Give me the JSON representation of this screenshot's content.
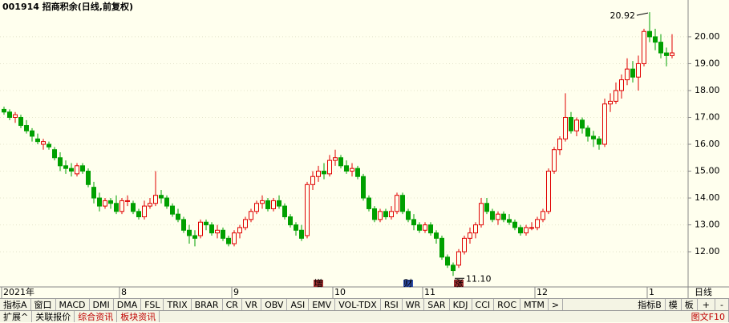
{
  "chart_data": {
    "type": "candlestick",
    "title": "001914 招商积余(日线,前复权)",
    "period": "日线",
    "up_color": "#e00000",
    "down_color": "#00a000",
    "ylim": [
      10.69,
      21.37
    ],
    "yticks": [
      {
        "value": 12,
        "label": "12.00"
      },
      {
        "value": 13,
        "label": "13.00"
      },
      {
        "value": 14,
        "label": "14.00"
      },
      {
        "value": 15,
        "label": "15.00"
      },
      {
        "value": 16,
        "label": "16.00"
      },
      {
        "value": 17,
        "label": "17.00"
      },
      {
        "value": 18,
        "label": "18.00"
      },
      {
        "value": 19,
        "label": "19.00"
      },
      {
        "value": 20,
        "label": "20.00"
      }
    ],
    "grid": true,
    "categories": [
      "2021年",
      null,
      null,
      null,
      null,
      null,
      null,
      null,
      null,
      null,
      null,
      null,
      null,
      null,
      null,
      null,
      null,
      null,
      null,
      null,
      null,
      "8",
      null,
      null,
      null,
      null,
      null,
      null,
      null,
      null,
      null,
      null,
      null,
      null,
      null,
      null,
      null,
      null,
      null,
      null,
      null,
      "9",
      null,
      null,
      null,
      null,
      null,
      null,
      null,
      null,
      null,
      null,
      null,
      null,
      null,
      null,
      null,
      null,
      null,
      "10",
      null,
      null,
      null,
      null,
      null,
      null,
      null,
      null,
      null,
      null,
      null,
      null,
      null,
      null,
      null,
      "11",
      null,
      null,
      null,
      null,
      null,
      null,
      null,
      null,
      null,
      null,
      null,
      null,
      null,
      null,
      null,
      null,
      null,
      null,
      null,
      "12",
      null,
      null,
      null,
      null,
      null,
      null,
      null,
      null,
      null,
      null,
      null,
      null,
      null,
      null,
      null,
      null,
      null,
      null,
      null,
      "1",
      null,
      null,
      null
    ],
    "candles": [
      [
        17.3,
        17.4,
        17.1,
        17.2
      ],
      [
        17.2,
        17.3,
        16.9,
        17.0
      ],
      [
        17.0,
        17.2,
        16.8,
        17.1
      ],
      [
        17.0,
        17.1,
        16.6,
        16.7
      ],
      [
        16.7,
        16.9,
        16.4,
        16.5
      ],
      [
        16.5,
        16.6,
        16.1,
        16.3
      ],
      [
        16.2,
        16.4,
        16.0,
        16.1
      ],
      [
        16.0,
        16.2,
        15.8,
        16.1
      ],
      [
        16.0,
        16.1,
        15.8,
        15.9
      ],
      [
        15.8,
        15.9,
        15.4,
        15.5
      ],
      [
        15.5,
        15.7,
        15.0,
        15.2
      ],
      [
        15.2,
        15.4,
        14.9,
        15.1
      ],
      [
        15.1,
        15.3,
        14.8,
        15.0
      ],
      [
        14.9,
        15.3,
        14.8,
        15.2
      ],
      [
        15.2,
        15.3,
        14.9,
        15.0
      ],
      [
        15.0,
        15.1,
        14.4,
        14.5
      ],
      [
        14.4,
        14.6,
        13.8,
        14.0
      ],
      [
        14.0,
        14.2,
        13.5,
        13.7
      ],
      [
        13.7,
        14.0,
        13.6,
        13.9
      ],
      [
        13.9,
        14.0,
        13.6,
        13.8
      ],
      [
        13.8,
        14.1,
        13.4,
        13.5
      ],
      [
        13.5,
        14.0,
        13.4,
        13.9
      ],
      [
        13.9,
        14.1,
        13.7,
        13.9
      ],
      [
        13.8,
        13.9,
        13.4,
        13.5
      ],
      [
        13.5,
        13.6,
        13.2,
        13.3
      ],
      [
        13.3,
        13.9,
        13.2,
        13.7
      ],
      [
        13.7,
        14.0,
        13.6,
        13.8
      ],
      [
        13.8,
        15.0,
        13.7,
        14.1
      ],
      [
        14.1,
        14.3,
        13.8,
        14.0
      ],
      [
        14.0,
        14.1,
        13.6,
        13.7
      ],
      [
        13.7,
        13.8,
        13.3,
        13.4
      ],
      [
        13.4,
        13.6,
        13.1,
        13.2
      ],
      [
        13.2,
        13.3,
        12.7,
        12.8
      ],
      [
        12.8,
        13.0,
        12.3,
        12.6
      ],
      [
        12.6,
        12.8,
        12.2,
        12.5
      ],
      [
        12.6,
        13.2,
        12.5,
        13.1
      ],
      [
        13.1,
        13.2,
        12.8,
        13.0
      ],
      [
        13.0,
        13.1,
        12.6,
        12.7
      ],
      [
        12.7,
        13.0,
        12.5,
        12.8
      ],
      [
        12.8,
        12.9,
        12.4,
        12.5
      ],
      [
        12.5,
        12.6,
        12.2,
        12.3
      ],
      [
        12.3,
        12.8,
        12.2,
        12.7
      ],
      [
        12.7,
        13.0,
        12.5,
        12.9
      ],
      [
        12.9,
        13.3,
        12.8,
        13.2
      ],
      [
        13.2,
        13.6,
        13.1,
        13.5
      ],
      [
        13.5,
        13.9,
        13.4,
        13.8
      ],
      [
        13.8,
        14.1,
        13.6,
        13.9
      ],
      [
        13.9,
        14.0,
        13.5,
        13.6
      ],
      [
        13.6,
        14.0,
        13.5,
        13.9
      ],
      [
        13.9,
        14.1,
        13.6,
        13.7
      ],
      [
        13.7,
        13.8,
        13.2,
        13.3
      ],
      [
        13.3,
        13.4,
        12.9,
        13.0
      ],
      [
        13.0,
        13.1,
        12.6,
        12.8
      ],
      [
        12.8,
        13.0,
        12.4,
        12.5
      ],
      [
        12.6,
        14.6,
        12.5,
        14.5
      ],
      [
        14.5,
        15.0,
        14.3,
        14.8
      ],
      [
        14.8,
        15.2,
        14.6,
        15.0
      ],
      [
        15.0,
        15.3,
        14.7,
        14.9
      ],
      [
        14.9,
        15.6,
        14.8,
        15.4
      ],
      [
        15.4,
        15.8,
        15.2,
        15.5
      ],
      [
        15.5,
        15.6,
        15.1,
        15.2
      ],
      [
        15.2,
        15.4,
        14.9,
        15.0
      ],
      [
        15.0,
        15.3,
        14.8,
        15.1
      ],
      [
        15.1,
        15.2,
        14.7,
        14.8
      ],
      [
        14.8,
        14.9,
        13.9,
        14.0
      ],
      [
        14.0,
        14.1,
        13.5,
        13.6
      ],
      [
        13.6,
        13.7,
        13.1,
        13.2
      ],
      [
        13.2,
        13.6,
        13.1,
        13.5
      ],
      [
        13.5,
        13.6,
        13.2,
        13.3
      ],
      [
        13.3,
        13.7,
        13.2,
        13.5
      ],
      [
        13.5,
        14.2,
        13.4,
        14.1
      ],
      [
        14.1,
        14.2,
        13.4,
        13.5
      ],
      [
        13.5,
        13.6,
        13.1,
        13.2
      ],
      [
        13.2,
        13.4,
        12.8,
        13.0
      ],
      [
        13.0,
        13.1,
        12.7,
        12.8
      ],
      [
        12.8,
        13.1,
        12.7,
        13.0
      ],
      [
        13.0,
        13.1,
        12.6,
        12.7
      ],
      [
        12.7,
        12.8,
        12.3,
        12.5
      ],
      [
        12.5,
        12.6,
        11.7,
        11.8
      ],
      [
        11.8,
        11.9,
        11.4,
        11.5
      ],
      [
        11.5,
        11.6,
        11.1,
        11.3
      ],
      [
        11.5,
        12.1,
        11.4,
        12.0
      ],
      [
        12.0,
        12.6,
        11.9,
        12.5
      ],
      [
        12.5,
        12.9,
        12.3,
        12.7
      ],
      [
        12.7,
        13.1,
        12.5,
        13.0
      ],
      [
        13.0,
        14.0,
        12.9,
        13.8
      ],
      [
        13.8,
        14.0,
        13.4,
        13.5
      ],
      [
        13.5,
        13.6,
        13.1,
        13.2
      ],
      [
        13.2,
        13.5,
        13.0,
        13.4
      ],
      [
        13.4,
        13.5,
        13.1,
        13.2
      ],
      [
        13.2,
        13.4,
        13.0,
        13.1
      ],
      [
        13.1,
        13.2,
        12.8,
        12.9
      ],
      [
        12.9,
        13.0,
        12.6,
        12.7
      ],
      [
        12.7,
        13.0,
        12.6,
        12.9
      ],
      [
        12.9,
        13.1,
        12.8,
        12.9
      ],
      [
        12.9,
        13.3,
        12.8,
        13.2
      ],
      [
        13.2,
        13.6,
        13.1,
        13.5
      ],
      [
        13.5,
        15.1,
        13.4,
        15.0
      ],
      [
        15.0,
        15.9,
        14.9,
        15.8
      ],
      [
        15.8,
        16.3,
        15.6,
        16.2
      ],
      [
        16.2,
        17.9,
        16.1,
        17.0
      ],
      [
        17.0,
        17.2,
        16.4,
        16.5
      ],
      [
        16.5,
        17.0,
        16.3,
        16.9
      ],
      [
        16.9,
        17.0,
        16.4,
        16.6
      ],
      [
        16.6,
        16.7,
        16.1,
        16.3
      ],
      [
        16.3,
        16.5,
        15.9,
        16.2
      ],
      [
        16.2,
        16.3,
        15.8,
        16.0
      ],
      [
        16.0,
        17.7,
        15.9,
        17.5
      ],
      [
        17.5,
        17.9,
        17.2,
        17.6
      ],
      [
        17.6,
        18.3,
        17.5,
        18.0
      ],
      [
        18.0,
        18.6,
        17.7,
        18.4
      ],
      [
        18.4,
        19.2,
        18.2,
        18.8
      ],
      [
        18.8,
        19.1,
        18.3,
        18.5
      ],
      [
        18.5,
        19.3,
        18.0,
        19.0
      ],
      [
        19.0,
        20.3,
        18.9,
        20.2
      ],
      [
        20.2,
        20.92,
        19.8,
        20.0
      ],
      [
        20.0,
        20.3,
        19.5,
        19.8
      ],
      [
        19.8,
        20.1,
        19.2,
        19.4
      ],
      [
        19.4,
        19.6,
        18.9,
        19.3
      ],
      [
        19.3,
        20.1,
        19.2,
        19.4
      ]
    ],
    "annotations": [
      {
        "text": "20.92",
        "candle": 115,
        "at": "high"
      },
      {
        "text": "11.10",
        "candle": 80,
        "at": "low"
      }
    ],
    "event_markers": [
      {
        "text": "增",
        "candle": 56
      },
      {
        "text": "财",
        "candle": 72
      },
      {
        "text": "涨",
        "candle": 81
      }
    ]
  },
  "toolbar": {
    "tabs": [
      "指标A",
      "窗口",
      "MACD",
      "DMI",
      "DMA",
      "FSL",
      "TRIX",
      "BRAR",
      "CR",
      "VR",
      "OBV",
      "ASI",
      "EMV",
      "VOL-TDX",
      "RSI",
      "WR",
      "SAR",
      "KDJ",
      "CCI",
      "ROC",
      "MTM",
      ">"
    ],
    "right": [
      "指标B",
      "模",
      "板"
    ],
    "zoom": [
      "+",
      "-"
    ]
  },
  "bottom_bar": {
    "tabs": [
      "扩展^",
      "关联报价",
      "综合资讯",
      "板块资讯"
    ],
    "right": "图文F10"
  }
}
